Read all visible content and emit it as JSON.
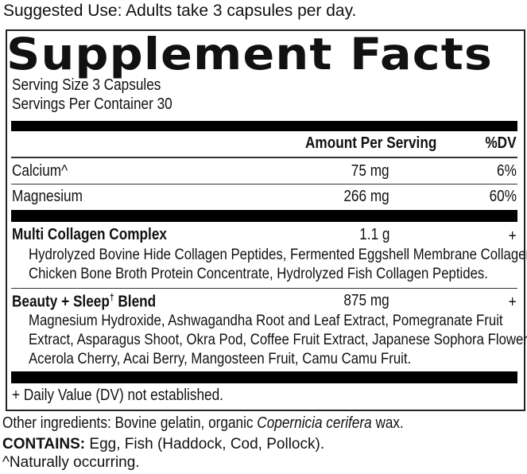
{
  "suggested_use": "Suggested Use: Adults take 3 capsules per day.",
  "title": "Supplement Facts",
  "serving_size": "Serving Size 3 Capsules",
  "servings_per_container": "Servings Per Container 30",
  "header": {
    "amount": "Amount Per Serving",
    "dv": "%DV"
  },
  "nutrients": [
    {
      "name": "Calcium^",
      "amount": "75 mg",
      "dv": "6%"
    },
    {
      "name": "Magnesium",
      "amount": "266 mg",
      "dv": "60%"
    }
  ],
  "blends": [
    {
      "name": "Multi Collagen Complex",
      "amount": "1.1 g",
      "dv": "+",
      "lines": [
        "Hydrolyzed Bovine Hide Collagen Peptides, Fermented Eggshell Membrane Collagen,",
        "Chicken Bone Broth Protein Concentrate, Hydrolyzed Fish Collagen Peptides."
      ]
    },
    {
      "name": "Beauty + Sleep",
      "mark": "†",
      "name_end": "Blend",
      "amount": "875 mg",
      "dv": "+",
      "lines": [
        "Magnesium Hydroxide, Ashwagandha Root and Leaf Extract, Pomegranate Fruit",
        "Extract, Asparagus Shoot, Okra Pod, Coffee Fruit Extract, Japanese Sophora Flower,",
        "Acerola Cherry, Acai Berry, Mangosteen Fruit, Camu Camu Fruit."
      ]
    }
  ],
  "footnote": "+ Daily Value (DV) not established.",
  "other_ingredients": {
    "prefix": "Other ingredients: Bovine gelatin, organic ",
    "italic": "Copernicia cerifera",
    "suffix": " wax."
  },
  "contains": {
    "label": "CONTAINS:",
    "text": " Egg, Fish (Haddock, Cod, Pollock)."
  },
  "naturally": "^Naturally occurring."
}
